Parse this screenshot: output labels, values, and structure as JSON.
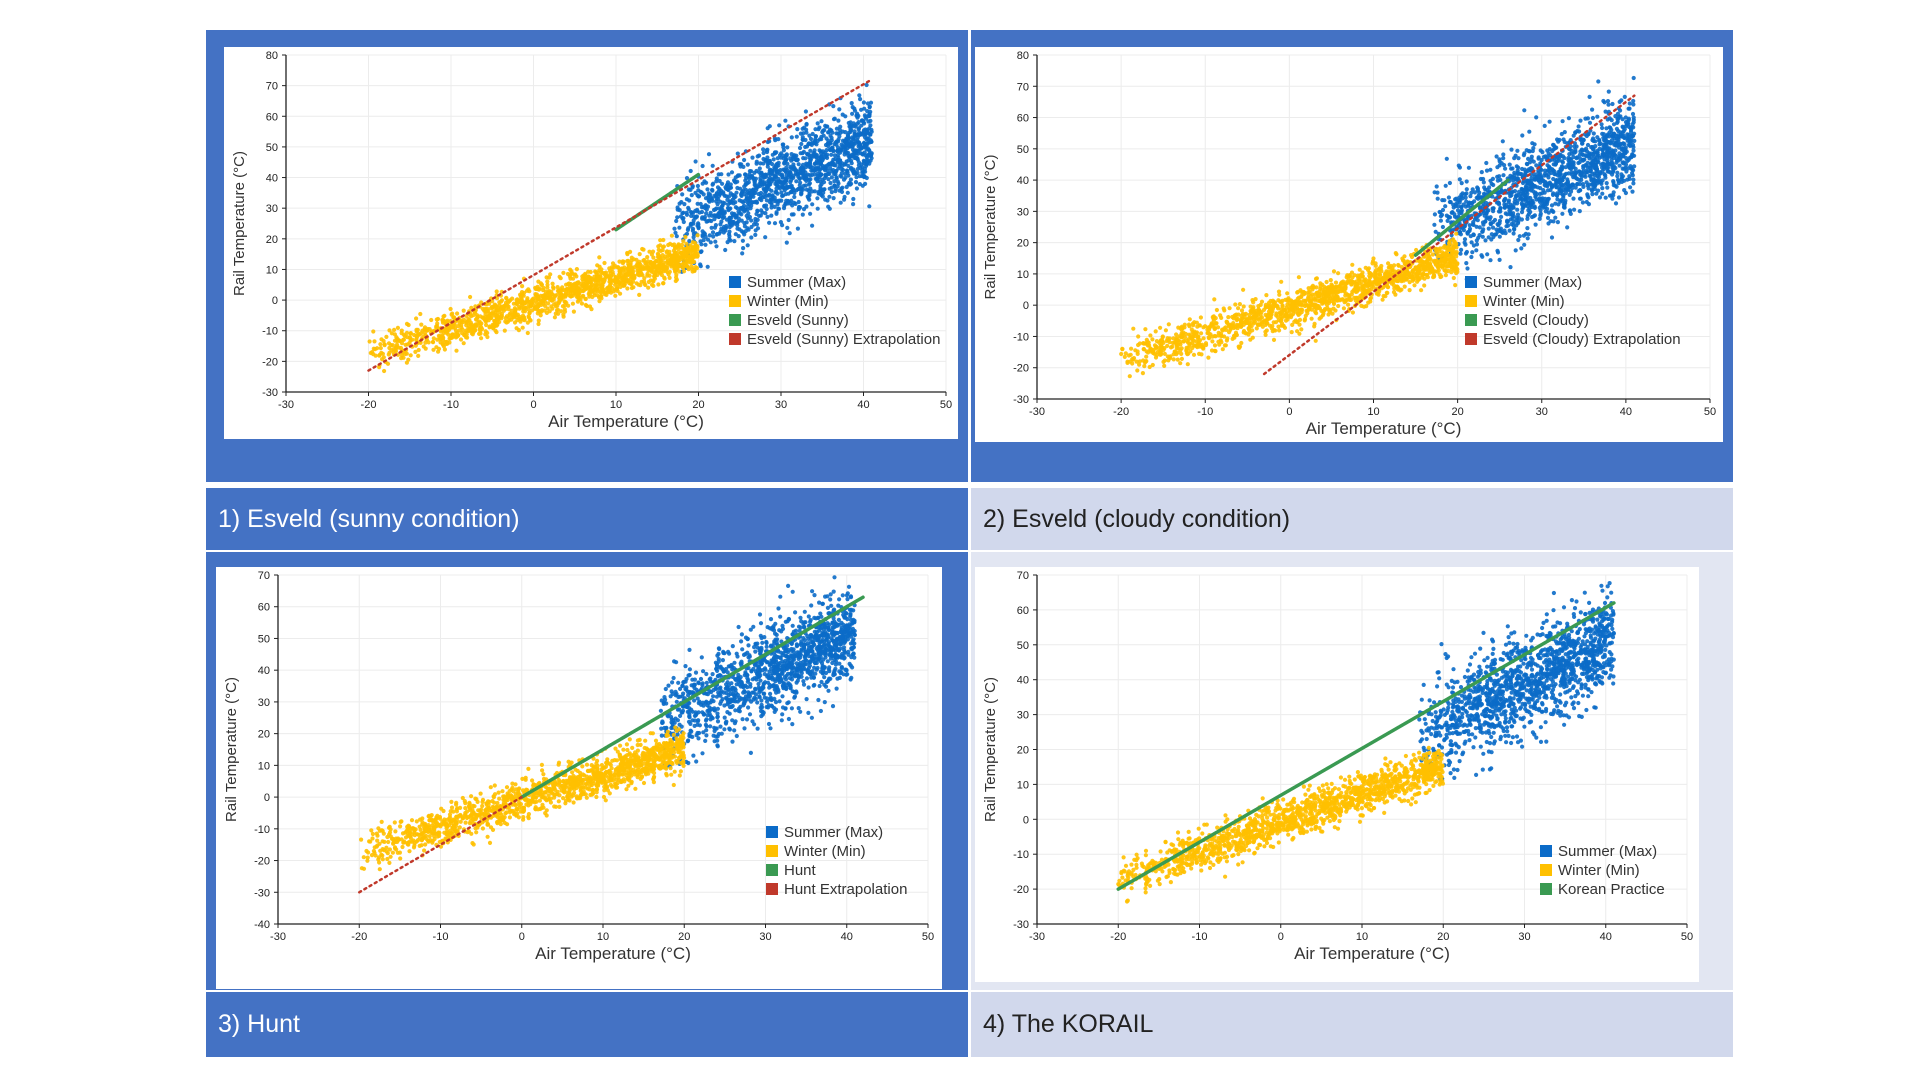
{
  "colors": {
    "summer": "#0B6BC8",
    "winter": "#FFC000",
    "fit": "#3A9A52",
    "extrap": "#C0392B",
    "panel_blue": "#4472C4",
    "panel_light": "#D1D8EC"
  },
  "captions": [
    "1) Esveld (sunny condition)",
    "2) Esveld (cloudy condition)",
    "3) Hunt",
    "4) The KORAIL"
  ],
  "chart_data": [
    {
      "type": "scatter",
      "xlabel": "Air Temperature (°C)",
      "ylabel": "Rail Temperature (°C)",
      "xlim": [
        -30,
        50
      ],
      "ylim": [
        -30,
        80
      ],
      "xticks": [
        "-30",
        "-20",
        "-10",
        "0",
        "10",
        "20",
        "30",
        "40",
        "50"
      ],
      "yticks": [
        "-30",
        "-20",
        "-10",
        "0",
        "10",
        "20",
        "30",
        "40",
        "50",
        "60",
        "70",
        "80"
      ],
      "legend": [
        "Summer (Max)",
        "Winter (Min)",
        "Esveld (Sunny)",
        "Esveld (Sunny) Extrapolation"
      ],
      "series": [
        {
          "name": "Summer (Max)",
          "cloud": {
            "x_range": [
              17,
              41
            ],
            "slope": 1.2,
            "intercept": 3,
            "spread": 7
          }
        },
        {
          "name": "Winter (Min)",
          "cloud": {
            "x_range": [
              -20,
              20
            ],
            "slope": 0.82,
            "intercept": -1,
            "spread": 3
          }
        },
        {
          "name": "Esveld (Sunny)",
          "line": {
            "x": [
              10,
              20
            ],
            "y": [
              23,
              41
            ]
          }
        },
        {
          "name": "Esveld (Sunny) Extrapolation",
          "line": {
            "x": [
              -20,
              41
            ],
            "y": [
              -23,
              72
            ]
          }
        }
      ]
    },
    {
      "type": "scatter",
      "xlabel": "Air Temperature (°C)",
      "ylabel": "Rail Temperature (°C)",
      "xlim": [
        -30,
        50
      ],
      "ylim": [
        -30,
        80
      ],
      "xticks": [
        "-30",
        "-20",
        "-10",
        "0",
        "10",
        "20",
        "30",
        "40",
        "50"
      ],
      "yticks": [
        "-30",
        "-20",
        "-10",
        "0",
        "10",
        "20",
        "30",
        "40",
        "50",
        "60",
        "70",
        "80"
      ],
      "legend": [
        "Summer (Max)",
        "Winter (Min)",
        "Esveld (Cloudy)",
        "Esveld (Cloudy) Extrapolation"
      ],
      "series": [
        {
          "name": "Summer (Max)",
          "cloud": {
            "x_range": [
              17,
              41
            ],
            "slope": 1.2,
            "intercept": 3,
            "spread": 7
          }
        },
        {
          "name": "Winter (Min)",
          "cloud": {
            "x_range": [
              -20,
              20
            ],
            "slope": 0.82,
            "intercept": -1,
            "spread": 3
          }
        },
        {
          "name": "Esveld (Cloudy)",
          "line": {
            "x": [
              15,
              26
            ],
            "y": [
              16,
              40
            ]
          }
        },
        {
          "name": "Esveld (Cloudy) Extrapolation",
          "line": {
            "x": [
              -3,
              41
            ],
            "y": [
              -22,
              67
            ]
          }
        }
      ]
    },
    {
      "type": "scatter",
      "xlabel": "Air Temperature (°C)",
      "ylabel": "Rail Temperature (°C)",
      "xlim": [
        -30,
        50
      ],
      "ylim": [
        -40,
        70
      ],
      "xticks": [
        "-30",
        "-20",
        "-10",
        "0",
        "10",
        "20",
        "30",
        "40",
        "50"
      ],
      "yticks": [
        "-40",
        "-30",
        "-20",
        "-10",
        "0",
        "10",
        "20",
        "30",
        "40",
        "50",
        "60",
        "70"
      ],
      "legend": [
        "Summer (Max)",
        "Winter (Min)",
        "Hunt",
        "Hunt Extrapolation"
      ],
      "series": [
        {
          "name": "Summer (Max)",
          "cloud": {
            "x_range": [
              17,
              41
            ],
            "slope": 1.2,
            "intercept": 3,
            "spread": 7
          }
        },
        {
          "name": "Winter (Min)",
          "cloud": {
            "x_range": [
              -20,
              20
            ],
            "slope": 0.82,
            "intercept": -1,
            "spread": 3
          }
        },
        {
          "name": "Hunt",
          "line": {
            "x": [
              0,
              42
            ],
            "y": [
              0,
              63
            ]
          }
        },
        {
          "name": "Hunt Extrapolation",
          "line": {
            "x": [
              -20,
              0
            ],
            "y": [
              -30,
              0
            ]
          }
        }
      ]
    },
    {
      "type": "scatter",
      "xlabel": "Air Temperature (°C)",
      "ylabel": "Rail Temperature (°C)",
      "xlim": [
        -30,
        50
      ],
      "ylim": [
        -30,
        70
      ],
      "xticks": [
        "-30",
        "-20",
        "-10",
        "0",
        "10",
        "20",
        "30",
        "40",
        "50"
      ],
      "yticks": [
        "-30",
        "-20",
        "-10",
        "0",
        "10",
        "20",
        "30",
        "40",
        "50",
        "60",
        "70"
      ],
      "legend": [
        "Summer (Max)",
        "Winter (Min)",
        "Korean Practice"
      ],
      "series": [
        {
          "name": "Summer (Max)",
          "cloud": {
            "x_range": [
              17,
              41
            ],
            "slope": 1.2,
            "intercept": 3,
            "spread": 7
          }
        },
        {
          "name": "Winter (Min)",
          "cloud": {
            "x_range": [
              -20,
              20
            ],
            "slope": 0.82,
            "intercept": -1,
            "spread": 3
          }
        },
        {
          "name": "Korean Practice",
          "line": {
            "x": [
              -20,
              41
            ],
            "y": [
              -20,
              62
            ]
          }
        }
      ]
    }
  ]
}
